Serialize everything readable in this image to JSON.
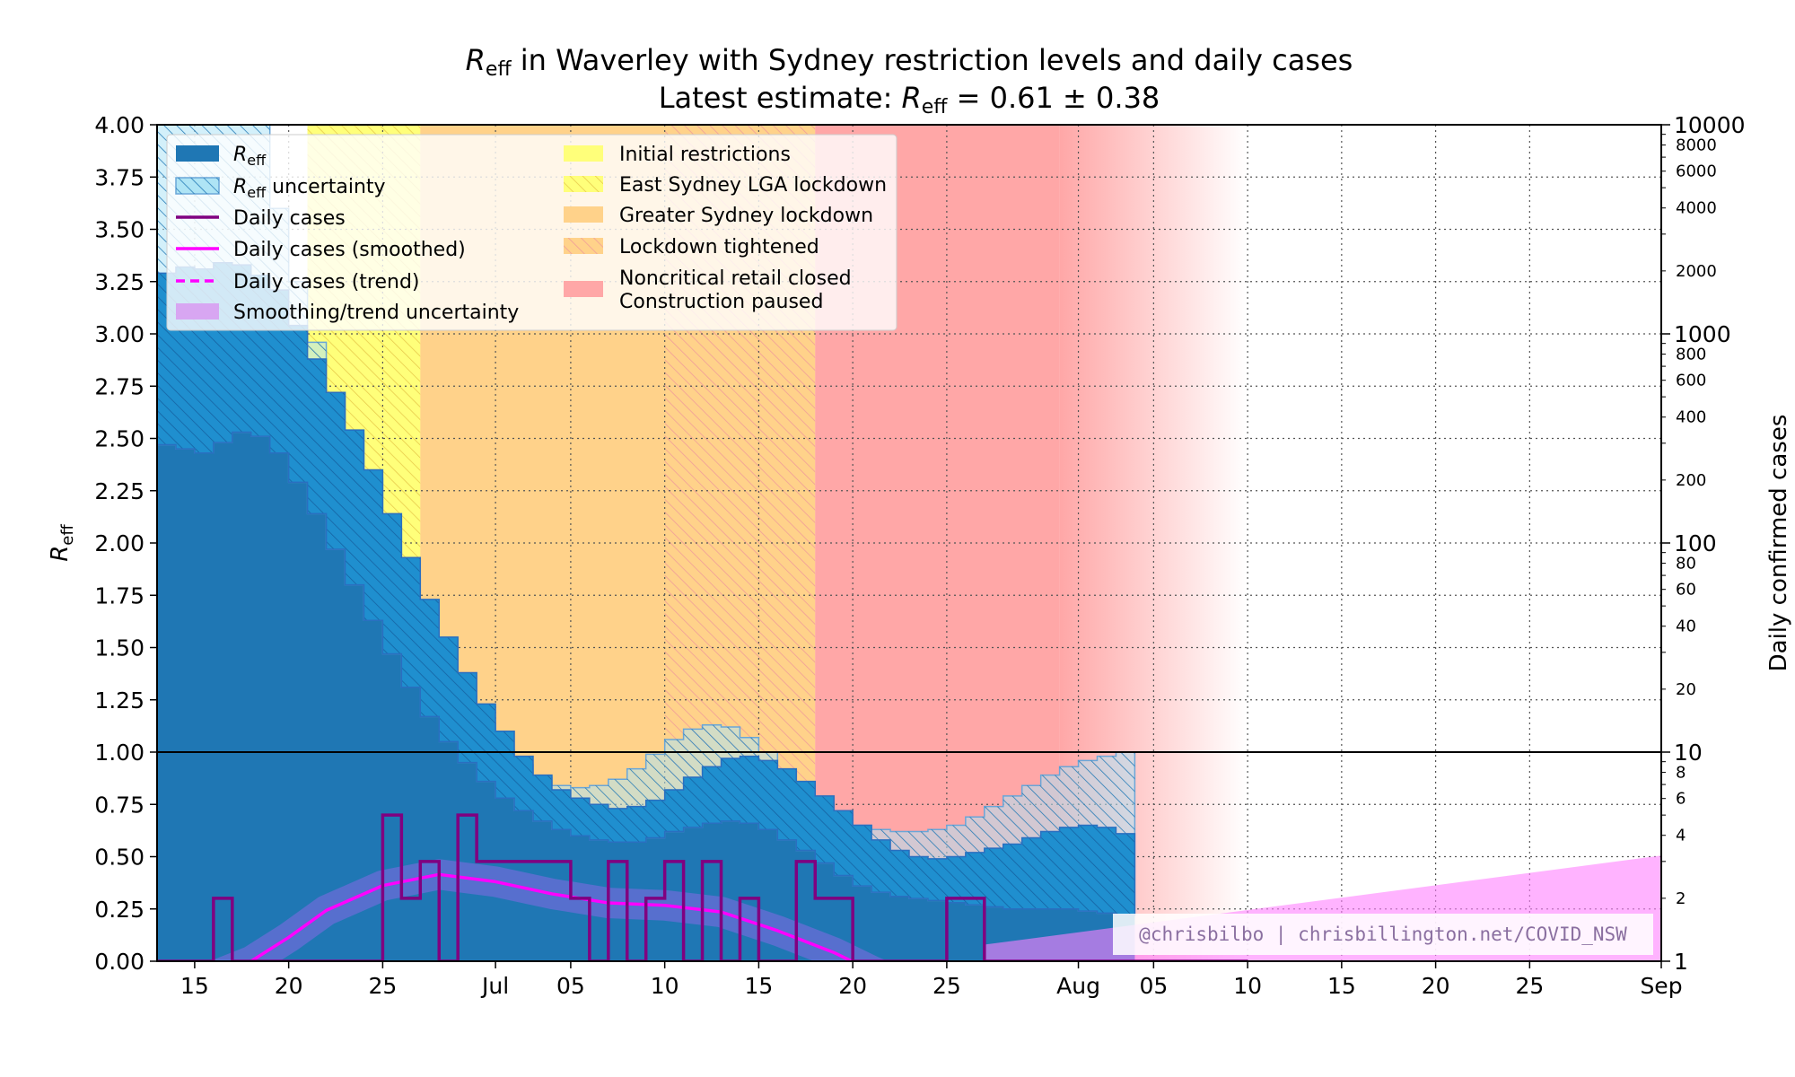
{
  "chart_data": {
    "type": "area",
    "title_line1_var": "R",
    "title_line1_sub": "eff",
    "title_line1_rest": " in Waverley with Sydney restriction levels and daily cases",
    "title_line2_prefix": "Latest estimate: ",
    "title_line2_var": "R",
    "title_line2_sub": "eff",
    "title_line2_value": " = 0.61 ± 0.38",
    "ylabel_var": "R",
    "ylabel_sub": "eff",
    "ylabel_right": "Daily confirmed cases",
    "credit": "@chrisbilbo | chrisbillington.net/COVID_NSW",
    "x_range": [
      "2021-06-13",
      "2021-09-01"
    ],
    "ylim": [
      0,
      4
    ],
    "ylim_right_log": [
      1,
      10000
    ],
    "grid": true,
    "legend_placement": "top-left",
    "x_tick_labels": [
      {
        "date": "2021-06-15",
        "label": "15"
      },
      {
        "date": "2021-06-20",
        "label": "20"
      },
      {
        "date": "2021-06-25",
        "label": "25"
      },
      {
        "date": "2021-07-01",
        "label": "Jul"
      },
      {
        "date": "2021-07-05",
        "label": "05"
      },
      {
        "date": "2021-07-10",
        "label": "10"
      },
      {
        "date": "2021-07-15",
        "label": "15"
      },
      {
        "date": "2021-07-20",
        "label": "20"
      },
      {
        "date": "2021-07-25",
        "label": "25"
      },
      {
        "date": "2021-08-01",
        "label": "Aug"
      },
      {
        "date": "2021-08-05",
        "label": "05"
      },
      {
        "date": "2021-08-10",
        "label": "10"
      },
      {
        "date": "2021-08-15",
        "label": "15"
      },
      {
        "date": "2021-08-20",
        "label": "20"
      },
      {
        "date": "2021-08-25",
        "label": "25"
      },
      {
        "date": "2021-09-01",
        "label": "Sep"
      }
    ],
    "y_tick_labels": [
      "0.00",
      "0.25",
      "0.50",
      "0.75",
      "1.00",
      "1.25",
      "1.50",
      "1.75",
      "2.00",
      "2.25",
      "2.50",
      "2.75",
      "3.00",
      "3.25",
      "3.50",
      "3.75",
      "4.00"
    ],
    "y_right_major": [
      {
        "value": 1,
        "label": "1"
      },
      {
        "value": 10,
        "label": "10"
      },
      {
        "value": 100,
        "label": "100"
      },
      {
        "value": 1000,
        "label": "1000"
      },
      {
        "value": 10000,
        "label": "10000"
      }
    ],
    "y_right_minor_labeled": [
      {
        "value": 2,
        "label": "2"
      },
      {
        "value": 4,
        "label": "4"
      },
      {
        "value": 6,
        "label": "6"
      },
      {
        "value": 8,
        "label": "8"
      },
      {
        "value": 20,
        "label": "20"
      },
      {
        "value": 40,
        "label": "40"
      },
      {
        "value": 60,
        "label": "60"
      },
      {
        "value": 80,
        "label": "80"
      },
      {
        "value": 200,
        "label": "200"
      },
      {
        "value": 400,
        "label": "400"
      },
      {
        "value": 600,
        "label": "600"
      },
      {
        "value": 800,
        "label": "800"
      },
      {
        "value": 2000,
        "label": "2000"
      },
      {
        "value": 4000,
        "label": "4000"
      },
      {
        "value": 6000,
        "label": "6000"
      },
      {
        "value": 8000,
        "label": "8000"
      }
    ],
    "restriction_periods": [
      {
        "name": "Initial restrictions",
        "start": "2021-06-21",
        "end": "2021-06-27",
        "color": "#ffff7a",
        "hatch": false
      },
      {
        "name": "East Sydney LGA lockdown",
        "start": "2021-06-21",
        "end": "2021-06-27",
        "color": "#ffff7a",
        "hatch": true
      },
      {
        "name": "Greater Sydney lockdown",
        "start": "2021-06-27",
        "end": "2021-07-18",
        "color": "#ffd28a",
        "hatch": false
      },
      {
        "name": "Lockdown tightened",
        "start": "2021-07-10",
        "end": "2021-07-18",
        "color": "#ffd28a",
        "hatch": true
      },
      {
        "name": "Noncritical retail closed\nConstruction paused",
        "start": "2021-07-18",
        "end": "2021-08-10",
        "color": "#ffa7a7",
        "hatch": false,
        "solid_until": "2021-07-31"
      }
    ],
    "reff_series": {
      "name": "Reff",
      "color": "#1f77b4",
      "dates_start": "2021-06-13",
      "values": [
        3.29,
        3.32,
        3.31,
        3.34,
        3.33,
        3.28,
        3.21,
        3.04,
        2.88,
        2.72,
        2.54,
        2.35,
        2.14,
        1.93,
        1.73,
        1.55,
        1.38,
        1.23,
        1.1,
        0.98,
        0.89,
        0.82,
        0.78,
        0.75,
        0.73,
        0.74,
        0.77,
        0.82,
        0.88,
        0.93,
        0.97,
        0.98,
        0.96,
        0.92,
        0.86,
        0.79,
        0.72,
        0.65,
        0.58,
        0.53,
        0.5,
        0.49,
        0.5,
        0.52,
        0.54,
        0.56,
        0.59,
        0.62,
        0.64,
        0.65,
        0.64,
        0.61
      ],
      "lower": [
        2.47,
        2.45,
        2.43,
        2.48,
        2.53,
        2.51,
        2.43,
        2.29,
        2.14,
        1.97,
        1.8,
        1.63,
        1.47,
        1.31,
        1.17,
        1.05,
        0.95,
        0.86,
        0.78,
        0.72,
        0.67,
        0.63,
        0.6,
        0.58,
        0.57,
        0.57,
        0.59,
        0.62,
        0.64,
        0.66,
        0.67,
        0.66,
        0.63,
        0.58,
        0.53,
        0.47,
        0.41,
        0.36,
        0.33,
        0.31,
        0.3,
        0.29,
        0.28,
        0.27,
        0.26,
        0.25,
        0.25,
        0.25,
        0.25,
        0.24,
        0.23,
        0.22
      ],
      "upper": [
        4.0,
        4.0,
        4.0,
        4.0,
        4.0,
        4.0,
        3.6,
        3.25,
        2.96,
        2.72,
        2.52,
        2.31,
        2.07,
        1.84,
        1.63,
        1.44,
        1.27,
        1.13,
        1.01,
        0.94,
        0.88,
        0.84,
        0.83,
        0.84,
        0.87,
        0.92,
        0.99,
        1.06,
        1.11,
        1.13,
        1.12,
        1.07,
        1.0,
        0.91,
        0.82,
        0.75,
        0.69,
        0.65,
        0.63,
        0.62,
        0.62,
        0.63,
        0.65,
        0.69,
        0.74,
        0.79,
        0.84,
        0.89,
        0.93,
        0.96,
        0.98,
        1.0
      ]
    },
    "reff_uncertainty_name": "Reff uncertainty",
    "daily_cases": {
      "name": "Daily cases",
      "color": "#800080",
      "dates_start": "2021-06-13",
      "values": [
        0,
        0,
        0,
        2,
        1,
        1,
        1,
        1,
        1,
        1,
        1,
        0,
        5,
        2,
        3,
        0,
        5,
        3,
        3,
        3,
        3,
        3,
        2,
        1,
        3,
        1,
        2,
        3,
        0,
        3,
        1,
        2,
        1,
        1,
        3,
        2,
        2,
        0,
        0,
        1,
        1,
        0,
        2,
        2,
        1,
        1,
        1,
        1,
        1,
        1,
        1,
        0,
        0,
        0,
        1,
        1,
        1,
        1
      ],
      "zero_shown_as": 1
    },
    "smoothed": {
      "name": "Daily cases (smoothed)",
      "color": "#ff00ff",
      "points": [
        {
          "date": "2021-06-16",
          "value": 0.85
        },
        {
          "date": "2021-06-18",
          "value": 1.0
        },
        {
          "date": "2021-06-20",
          "value": 1.3
        },
        {
          "date": "2021-06-22",
          "value": 1.75
        },
        {
          "date": "2021-06-25",
          "value": 2.3
        },
        {
          "date": "2021-06-28",
          "value": 2.6
        },
        {
          "date": "2021-07-01",
          "value": 2.4
        },
        {
          "date": "2021-07-04",
          "value": 2.1
        },
        {
          "date": "2021-07-07",
          "value": 1.9
        },
        {
          "date": "2021-07-10",
          "value": 1.85
        },
        {
          "date": "2021-07-13",
          "value": 1.72
        },
        {
          "date": "2021-07-16",
          "value": 1.4
        },
        {
          "date": "2021-07-19",
          "value": 1.1
        },
        {
          "date": "2021-07-21",
          "value": 0.9
        },
        {
          "date": "2021-07-23",
          "value": 0.75
        },
        {
          "date": "2021-07-25",
          "value": 0.65
        }
      ]
    },
    "trend_name": "Daily cases (trend)",
    "trend_uncertainty": {
      "name": "Smoothing/trend uncertainty",
      "color": "#ff80ff",
      "start": "2021-07-27",
      "end": "2021-09-01",
      "upper_start": 1.2,
      "upper_end": 3.2
    }
  }
}
